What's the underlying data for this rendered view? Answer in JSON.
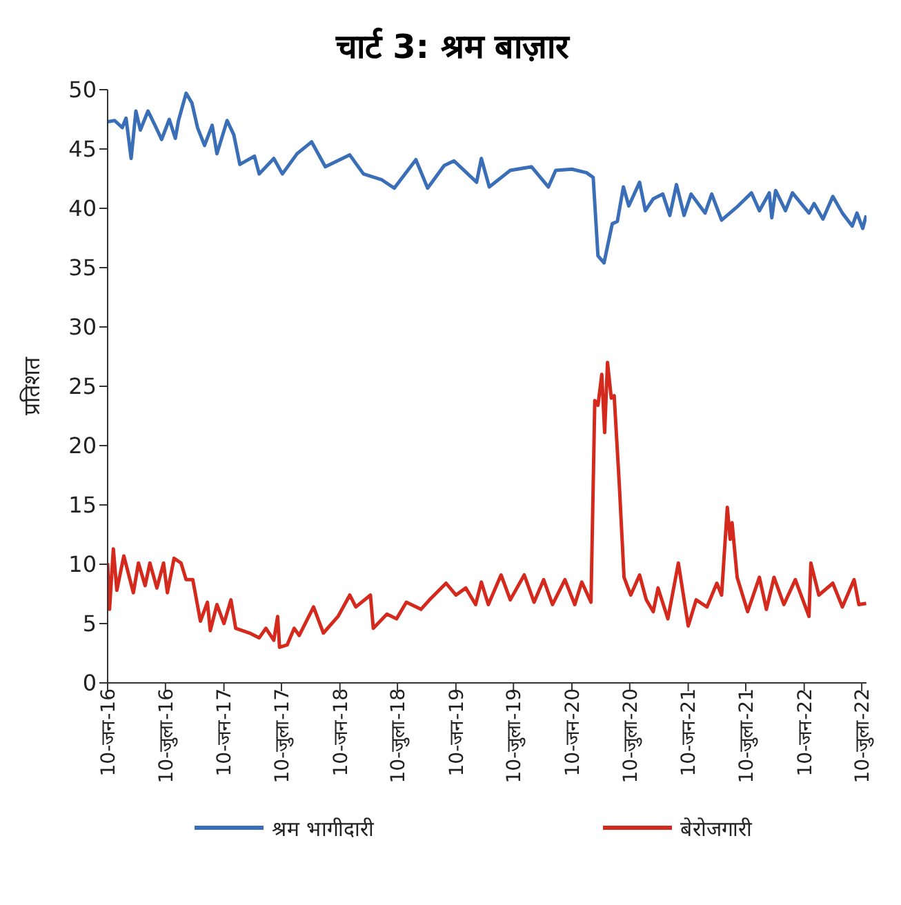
{
  "chart_data": {
    "type": "line",
    "title": "चार्ट 3: श्रम बाज़ार",
    "ylabel": "प्रतिशत",
    "xlim": [
      "2016-01-10",
      "2022-07-25"
    ],
    "ylim": [
      0,
      50
    ],
    "yticks": [
      0,
      5,
      10,
      15,
      20,
      25,
      30,
      35,
      40,
      45,
      50
    ],
    "xticks": [
      {
        "value": "2016-01-10",
        "label": "10-जन-16"
      },
      {
        "value": "2016-07-10",
        "label": "10-जुला-16"
      },
      {
        "value": "2017-01-10",
        "label": "10-जन-17"
      },
      {
        "value": "2017-07-10",
        "label": "10-जुला-17"
      },
      {
        "value": "2018-01-10",
        "label": "10-जन-18"
      },
      {
        "value": "2018-07-10",
        "label": "10-जुला-18"
      },
      {
        "value": "2019-01-10",
        "label": "10-जन-19"
      },
      {
        "value": "2019-07-10",
        "label": "10-जुला-19"
      },
      {
        "value": "2020-01-10",
        "label": "10-जन-20"
      },
      {
        "value": "2020-07-10",
        "label": "10-जुला-20"
      },
      {
        "value": "2021-01-10",
        "label": "10-जन-21"
      },
      {
        "value": "2021-07-10",
        "label": "10-जुला-21"
      },
      {
        "value": "2022-01-10",
        "label": "10-जन-22"
      },
      {
        "value": "2022-07-10",
        "label": "10-जुला-22"
      }
    ],
    "grid": false,
    "legend": "bottom",
    "marker": "none",
    "line_style": "solid",
    "series": [
      {
        "name": "श्रम भागीदारी",
        "color": "#3a6fb8",
        "x": [
          "2016-01-10",
          "2016-02-01",
          "2016-02-25",
          "2016-03-08",
          "2016-03-24",
          "2016-04-08",
          "2016-04-22",
          "2016-05-16",
          "2016-06-07",
          "2016-06-28",
          "2016-07-22",
          "2016-08-10",
          "2016-08-20",
          "2016-09-13",
          "2016-10-01",
          "2016-10-19",
          "2016-11-10",
          "2016-12-04",
          "2016-12-19",
          "2017-01-20",
          "2017-02-10",
          "2017-03-01",
          "2017-04-16",
          "2017-05-01",
          "2017-06-16",
          "2017-07-13",
          "2017-08-28",
          "2017-10-13",
          "2017-11-25",
          "2018-02-10",
          "2018-03-25",
          "2018-05-22",
          "2018-06-30",
          "2018-09-06",
          "2018-10-13",
          "2018-12-04",
          "2019-01-04",
          "2019-03-16",
          "2019-03-31",
          "2019-04-25",
          "2019-06-30",
          "2019-09-05",
          "2019-10-28",
          "2019-11-20",
          "2020-01-10",
          "2020-02-25",
          "2020-03-17",
          "2020-04-01",
          "2020-04-20",
          "2020-05-16",
          "2020-06-01",
          "2020-06-20",
          "2020-07-07",
          "2020-08-10",
          "2020-08-28",
          "2020-09-22",
          "2020-10-22",
          "2020-11-13",
          "2020-12-04",
          "2020-12-28",
          "2021-01-19",
          "2021-03-04",
          "2021-03-25",
          "2021-04-25",
          "2021-06-16",
          "2021-07-28",
          "2021-08-22",
          "2021-09-22",
          "2021-09-30",
          "2021-10-12",
          "2021-11-12",
          "2021-12-04",
          "2022-01-25",
          "2022-02-10",
          "2022-03-10",
          "2022-04-10",
          "2022-05-10",
          "2022-06-10",
          "2022-06-25",
          "2022-07-13",
          "2022-07-24"
        ],
        "values": [
          47.3,
          47.4,
          46.8,
          47.6,
          44.2,
          48.2,
          46.6,
          48.2,
          47.0,
          45.8,
          47.5,
          45.9,
          47.4,
          49.7,
          48.9,
          46.8,
          45.3,
          47.0,
          44.6,
          47.4,
          46.2,
          43.7,
          44.4,
          42.9,
          44.2,
          42.9,
          44.6,
          45.6,
          43.5,
          44.5,
          42.9,
          42.4,
          41.7,
          44.1,
          41.7,
          43.6,
          44.0,
          42.2,
          44.2,
          41.8,
          43.2,
          43.5,
          41.8,
          43.2,
          43.3,
          43.0,
          42.6,
          36.0,
          35.4,
          38.7,
          38.9,
          41.8,
          40.2,
          42.2,
          39.8,
          40.8,
          41.2,
          39.4,
          42.0,
          39.4,
          41.2,
          39.6,
          41.2,
          39.0,
          40.2,
          41.3,
          39.8,
          41.3,
          39.2,
          41.5,
          39.8,
          41.3,
          39.6,
          40.4,
          39.1,
          41.0,
          39.6,
          38.5,
          39.6,
          38.3,
          39.4
        ]
      },
      {
        "name": "बेरोजगारी",
        "color": "#d42a1e",
        "x": [
          "2016-01-10",
          "2016-01-16",
          "2016-01-28",
          "2016-02-08",
          "2016-03-01",
          "2016-03-31",
          "2016-04-16",
          "2016-05-07",
          "2016-05-22",
          "2016-06-13",
          "2016-07-04",
          "2016-07-16",
          "2016-08-06",
          "2016-08-28",
          "2016-09-13",
          "2016-10-04",
          "2016-10-28",
          "2016-11-19",
          "2016-11-28",
          "2016-12-19",
          "2017-01-10",
          "2017-02-01",
          "2017-02-16",
          "2017-04-01",
          "2017-05-01",
          "2017-05-22",
          "2017-06-16",
          "2017-06-28",
          "2017-07-04",
          "2017-07-28",
          "2017-08-19",
          "2017-09-04",
          "2017-10-19",
          "2017-11-19",
          "2018-01-04",
          "2018-02-10",
          "2018-03-01",
          "2018-04-16",
          "2018-04-25",
          "2018-06-07",
          "2018-07-07",
          "2018-08-07",
          "2018-09-22",
          "2018-10-19",
          "2018-12-10",
          "2019-01-10",
          "2019-02-10",
          "2019-03-13",
          "2019-03-31",
          "2019-04-22",
          "2019-06-01",
          "2019-06-30",
          "2019-08-13",
          "2019-09-13",
          "2019-10-13",
          "2019-11-10",
          "2019-12-19",
          "2020-01-19",
          "2020-02-10",
          "2020-03-10",
          "2020-03-22",
          "2020-04-01",
          "2020-04-13",
          "2020-04-22",
          "2020-05-01",
          "2020-05-13",
          "2020-05-22",
          "2020-06-07",
          "2020-06-22",
          "2020-07-13",
          "2020-08-10",
          "2020-08-31",
          "2020-09-22",
          "2020-10-07",
          "2020-11-07",
          "2020-12-10",
          "2021-01-10",
          "2021-02-04",
          "2021-03-10",
          "2021-04-10",
          "2021-04-25",
          "2021-05-13",
          "2021-05-22",
          "2021-05-28",
          "2021-06-13",
          "2021-07-16",
          "2021-08-22",
          "2021-09-13",
          "2021-10-07",
          "2021-11-07",
          "2021-12-13",
          "2022-01-25",
          "2022-01-31",
          "2022-02-25",
          "2022-04-10",
          "2022-05-10",
          "2022-06-16",
          "2022-07-01",
          "2022-07-24"
        ],
        "values": [
          10.1,
          6.2,
          11.3,
          7.8,
          10.7,
          7.6,
          10.1,
          8.2,
          10.1,
          8.0,
          10.1,
          7.6,
          10.5,
          10.1,
          8.7,
          8.7,
          5.2,
          6.8,
          4.4,
          6.6,
          5.0,
          7.0,
          4.6,
          4.2,
          3.8,
          4.6,
          3.6,
          5.6,
          3.0,
          3.2,
          4.6,
          4.0,
          6.4,
          4.2,
          5.6,
          7.4,
          6.4,
          7.4,
          4.6,
          5.8,
          5.4,
          6.8,
          6.2,
          7.0,
          8.4,
          7.4,
          8.0,
          6.6,
          8.5,
          6.6,
          9.1,
          7.0,
          9.1,
          6.8,
          8.7,
          6.6,
          8.7,
          6.6,
          8.5,
          6.8,
          23.8,
          23.4,
          26.0,
          21.1,
          27.0,
          24.0,
          24.2,
          16.8,
          8.9,
          7.4,
          9.1,
          7.0,
          6.0,
          8.0,
          5.4,
          10.1,
          4.8,
          7.0,
          6.4,
          8.4,
          7.4,
          14.8,
          12.1,
          13.5,
          8.9,
          6.0,
          8.9,
          6.2,
          8.9,
          6.6,
          8.7,
          5.6,
          10.1,
          7.4,
          8.4,
          6.4,
          8.7,
          6.6,
          6.7
        ]
      }
    ]
  }
}
